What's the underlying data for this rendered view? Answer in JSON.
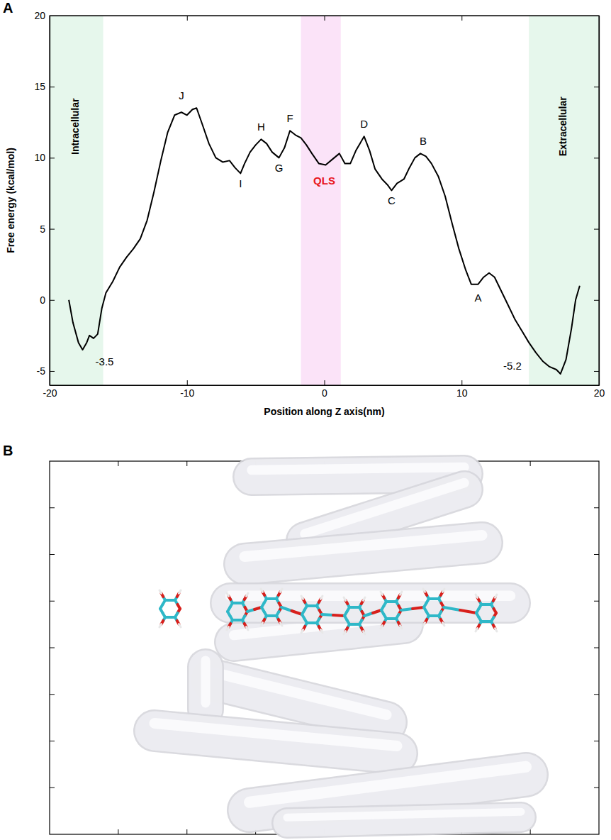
{
  "chart_data": {
    "type": "line",
    "panel_label": "A",
    "x_label": "Position along Z axis(nm)",
    "y_label": "Free energy (kcal/mol)",
    "color": "#000000",
    "x": [
      -18.6,
      -18.3,
      -17.9,
      -17.6,
      -17.3,
      -17.1,
      -16.8,
      -16.5,
      -16.2,
      -15.9,
      -15.4,
      -14.9,
      -14.4,
      -13.9,
      -13.4,
      -12.9,
      -12.4,
      -11.9,
      -11.4,
      -10.9,
      -10.4,
      -10.0,
      -9.6,
      -9.3,
      -8.9,
      -8.4,
      -7.9,
      -7.4,
      -6.9,
      -6.5,
      -6.1,
      -5.8,
      -5.4,
      -5.0,
      -4.6,
      -4.2,
      -3.8,
      -3.3,
      -2.9,
      -2.5,
      -2.1,
      -1.7,
      -1.3,
      -0.9,
      -0.4,
      0.1,
      0.6,
      1.1,
      1.5,
      1.9,
      2.3,
      2.9,
      3.3,
      3.7,
      4.2,
      4.6,
      4.9,
      5.3,
      5.8,
      6.2,
      6.6,
      7.0,
      7.4,
      7.8,
      8.3,
      8.8,
      9.3,
      9.8,
      10.3,
      10.7,
      11.2,
      11.6,
      12.0,
      12.4,
      12.9,
      13.4,
      13.9,
      14.4,
      14.9,
      15.4,
      15.9,
      16.4,
      16.9,
      17.2,
      17.6,
      18.0,
      18.3,
      18.6
    ],
    "values": [
      0.0,
      -1.6,
      -3.0,
      -3.5,
      -3.0,
      -2.5,
      -2.7,
      -2.4,
      -0.6,
      0.5,
      1.3,
      2.3,
      3.0,
      3.6,
      4.3,
      5.6,
      7.6,
      9.8,
      11.8,
      13.0,
      13.2,
      13.0,
      13.4,
      13.5,
      12.4,
      11.0,
      10.0,
      9.7,
      9.8,
      9.3,
      8.9,
      9.6,
      10.4,
      10.9,
      11.3,
      11.0,
      10.4,
      10.0,
      10.7,
      11.9,
      11.6,
      11.4,
      10.9,
      10.3,
      9.6,
      9.5,
      9.9,
      10.3,
      9.6,
      9.6,
      10.5,
      11.5,
      10.5,
      9.2,
      8.5,
      8.1,
      7.7,
      8.2,
      8.5,
      9.3,
      10.0,
      10.3,
      10.1,
      9.6,
      8.7,
      7.3,
      5.4,
      3.6,
      2.1,
      1.1,
      1.1,
      1.6,
      1.9,
      1.6,
      0.6,
      -0.4,
      -1.4,
      -2.2,
      -3.0,
      -3.7,
      -4.3,
      -4.7,
      -4.9,
      -5.2,
      -4.2,
      -2.0,
      0.0,
      1.0
    ],
    "xlim": [
      -20,
      20
    ],
    "xticks": [
      -20,
      -10,
      0,
      10,
      20
    ],
    "ylim": [
      -6,
      20
    ],
    "yticks": [
      -5,
      0,
      5,
      10,
      15,
      20
    ],
    "regions": [
      {
        "label": "Intracellular",
        "range": [
          -20,
          -16.1
        ],
        "color": "#e6f7ec"
      },
      {
        "range": [
          -1.7,
          1.2
        ],
        "color": "#fbe3f8"
      },
      {
        "label": "Extracellular",
        "range": [
          14.9,
          20
        ],
        "color": "#e6f7ec"
      }
    ],
    "annotations": [
      {
        "text": "J",
        "x": -10.4,
        "y": 14.3
      },
      {
        "text": "H",
        "x": -4.6,
        "y": 12.1
      },
      {
        "text": "F",
        "x": -2.5,
        "y": 12.7
      },
      {
        "text": "D",
        "x": 2.9,
        "y": 12.3
      },
      {
        "text": "B",
        "x": 7.2,
        "y": 11.1
      },
      {
        "text": "I",
        "x": -6.1,
        "y": 8.1
      },
      {
        "text": "G",
        "x": -3.3,
        "y": 9.2
      },
      {
        "text": "C",
        "x": 4.9,
        "y": 6.9
      },
      {
        "text": "A",
        "x": 11.2,
        "y": 0.1
      },
      {
        "text": "QLS",
        "x": 0,
        "y": 8.3,
        "color": "#e8141c"
      },
      {
        "text": "-3.5",
        "x": -16.0,
        "y": -4.4
      },
      {
        "text": "-5.2",
        "x": 13.7,
        "y": -4.7
      }
    ]
  },
  "panel_b": {
    "panel_label": "B"
  }
}
